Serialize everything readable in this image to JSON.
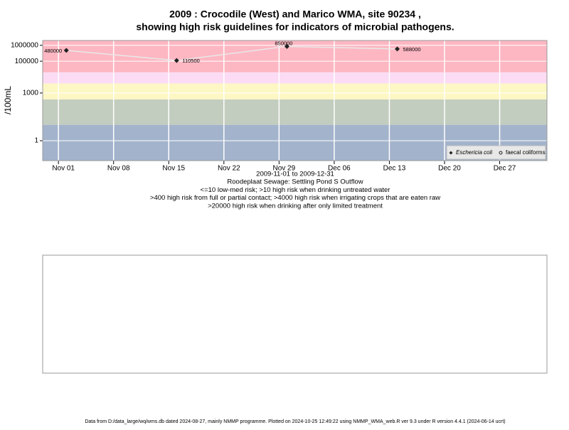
{
  "chart_data": {
    "type": "line",
    "title": "2009 : Crocodile (West) and Marico WMA, site 90234 ,",
    "title_line2": "showing high risk guidelines for indicators of microbial pathogens.",
    "y_label": "/100mL",
    "notes": [
      "2009-11-01 to 2009-12-31",
      "Roodeplaat Sewage: Settling Pond S Outflow",
      "<=10 low-med risk; >10 high risk when drinking untreated water",
      ">400 high risk from full or partial contact; >4000 high risk when irrigating crops that are eaten raw",
      ">20000 high risk when drinking after only limited treatment"
    ],
    "footer": "Data from D:/data_large/wq/wms.db dated 2024-08-27, mainly NMMP programme. Plotted on 2024-10-25 12:49:22 using NMMP_WMA_web.R ver 9.3 under R version 4.4.1 (2024-06-14 ucrt)",
    "x": [
      "2009-11-02",
      "2009-11-16",
      "2009-11-30",
      "2009-12-14"
    ],
    "series": [
      {
        "name": "Eschericia coli",
        "color": "#222222",
        "line_color": "#e8e8e8",
        "values": [
          480000,
          110500,
          850000,
          588000
        ]
      },
      {
        "name": "faecal coliforms",
        "color": "#222222",
        "values": [
          null,
          null,
          null,
          null
        ]
      }
    ],
    "log_scale": true,
    "ylim": [
      0.056,
      2000000
    ],
    "yticks": [
      1,
      1000,
      100000,
      1000000
    ],
    "xlim": [
      "2009-10-30",
      "2010-01-02"
    ],
    "xticks": [
      {
        "value": "2009-11-01",
        "label": "Nov 01"
      },
      {
        "value": "2009-11-08",
        "label": "Nov 08"
      },
      {
        "value": "2009-11-15",
        "label": "Nov 15"
      },
      {
        "value": "2009-11-22",
        "label": "Nov 22"
      },
      {
        "value": "2009-11-29",
        "label": "Nov 29"
      },
      {
        "value": "2009-12-06",
        "label": "Dec 06"
      },
      {
        "value": "2009-12-13",
        "label": "Dec 13"
      },
      {
        "value": "2009-12-20",
        "label": "Dec 20"
      },
      {
        "value": "2009-12-27",
        "label": "Dec 27"
      }
    ],
    "band_limits": [
      10,
      400,
      4000,
      20000
    ],
    "band_colors": [
      "#a3b3cc",
      "#c3cdbf",
      "#fdf7c4",
      "#fbdcf4",
      "#fdb7c2"
    ],
    "grid": true,
    "legend_position": "bottom-right"
  }
}
